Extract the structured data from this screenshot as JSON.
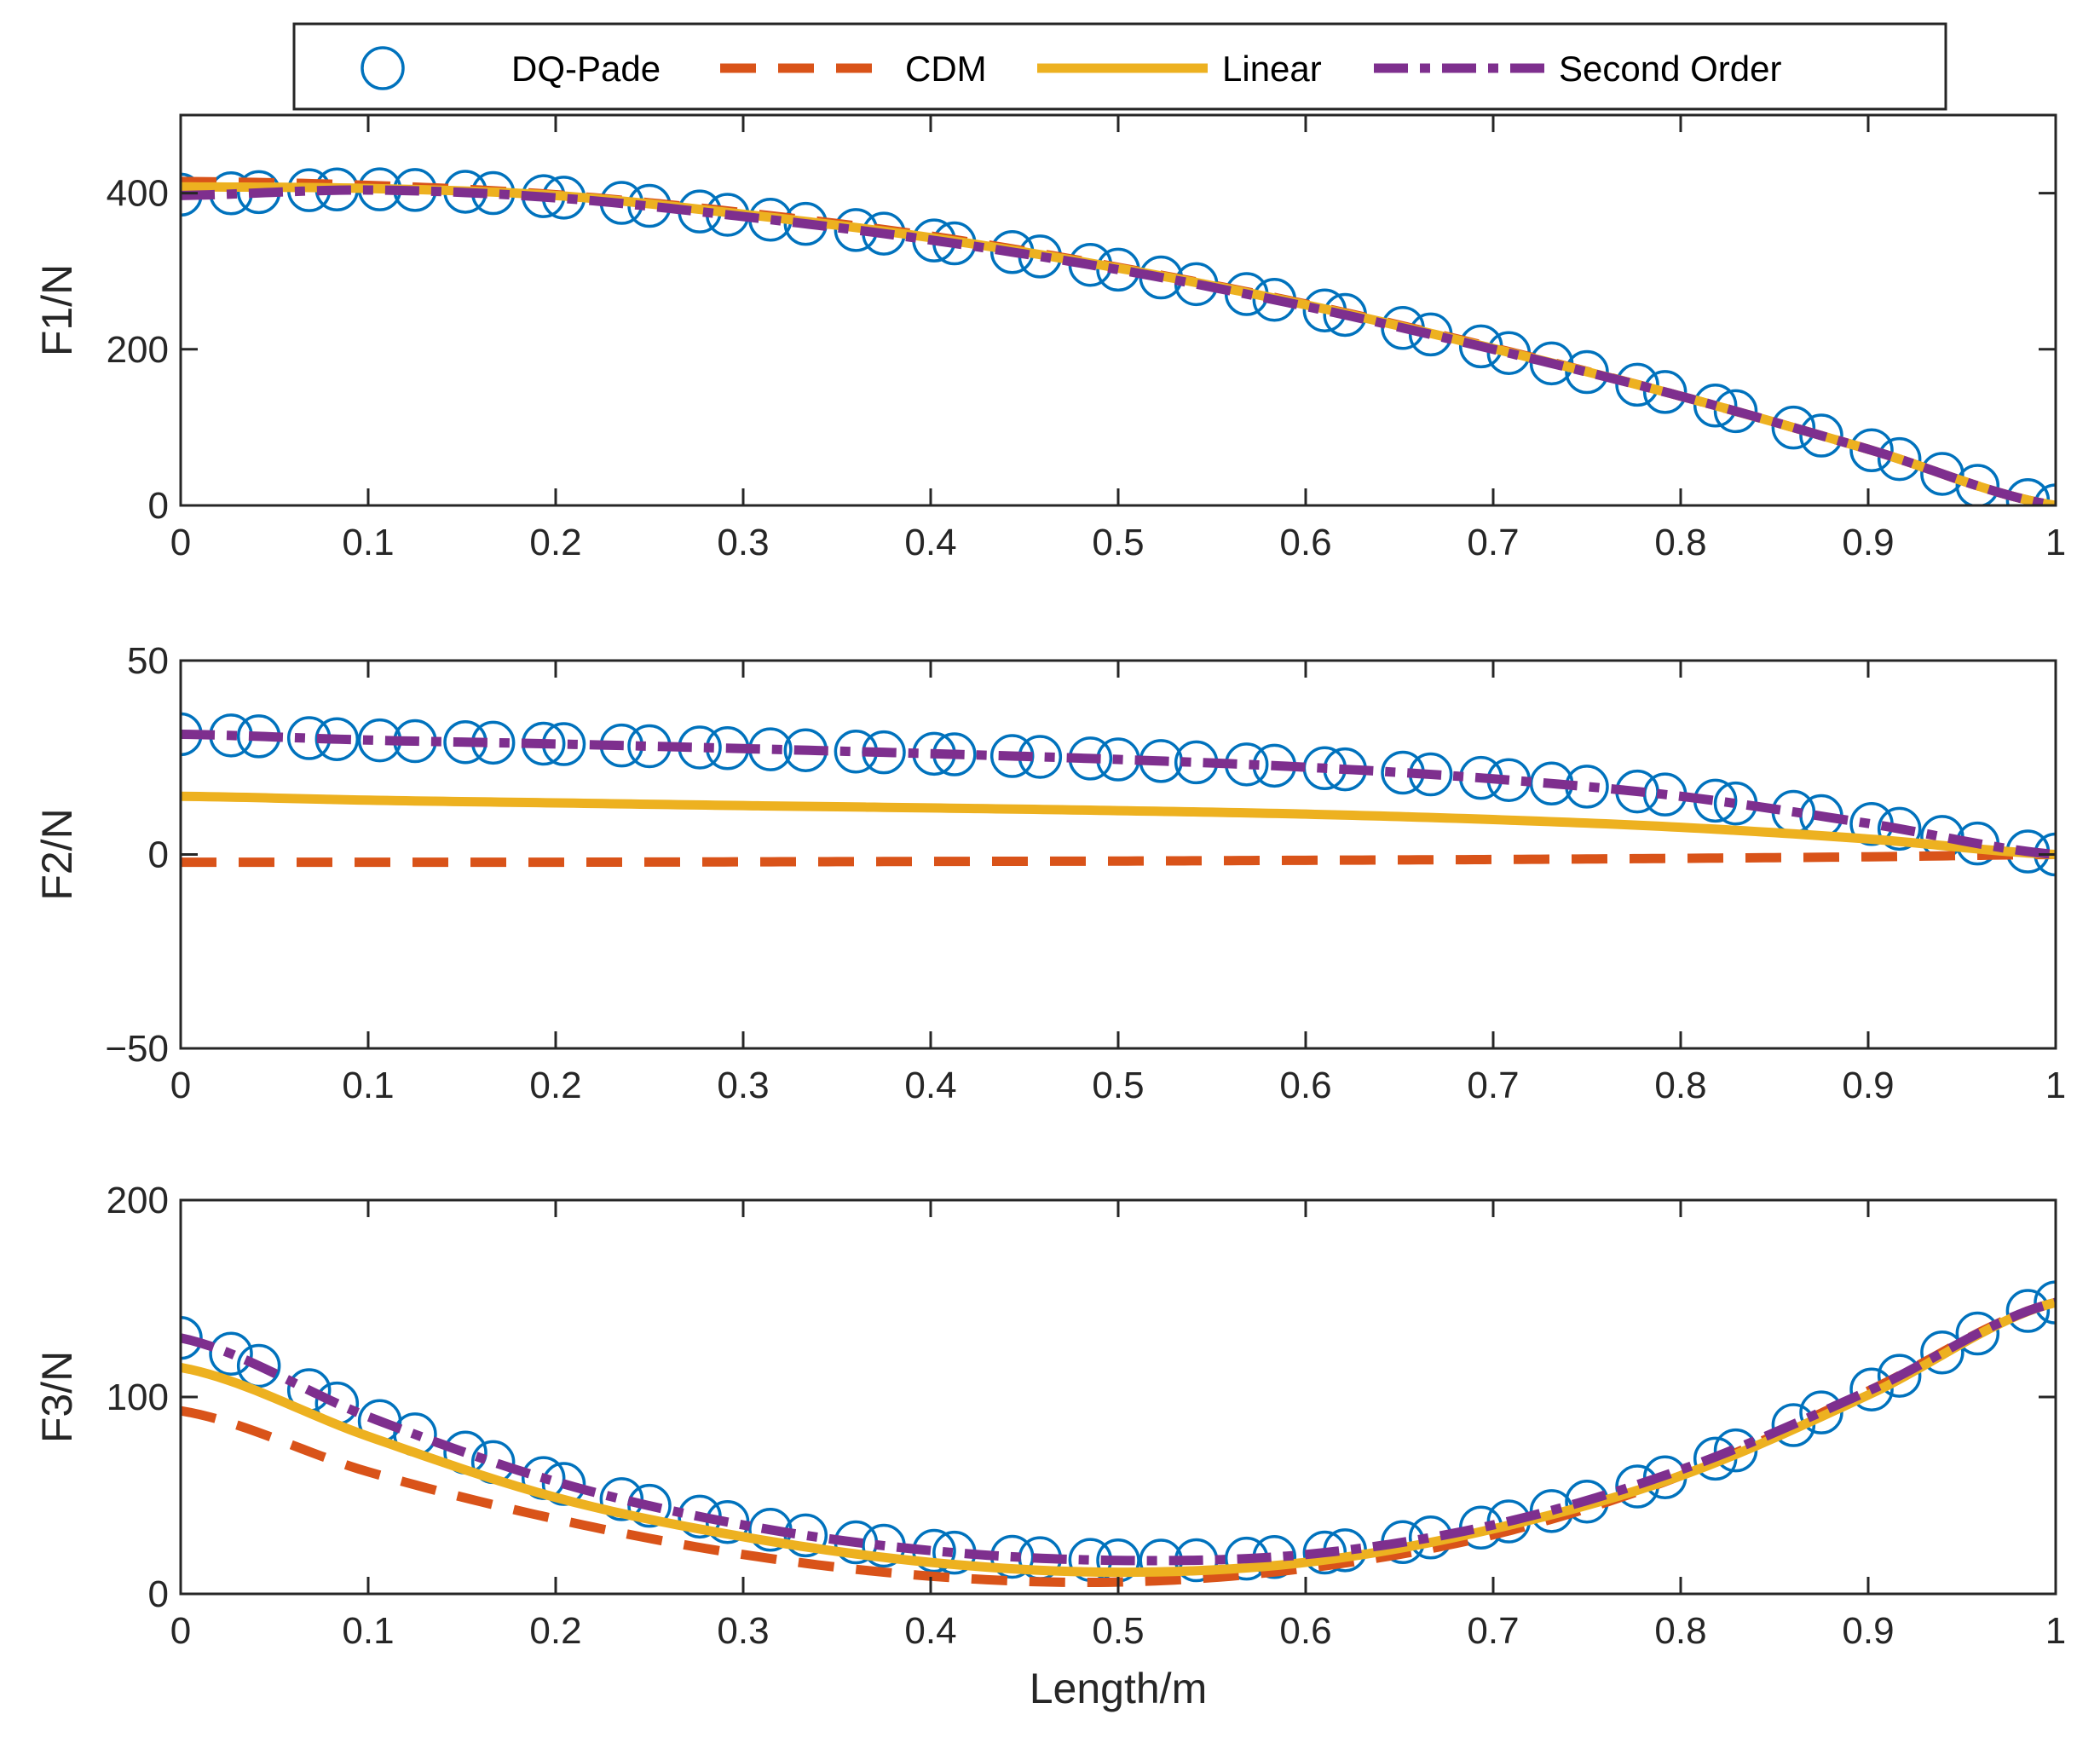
{
  "legend": {
    "position": "top",
    "entries": [
      {
        "name": "DQ-Pade",
        "style": "circle",
        "color": "#0072BD"
      },
      {
        "name": "CDM",
        "style": "dashed",
        "color": "#D95319"
      },
      {
        "name": "Linear",
        "style": "solid",
        "color": "#EDB120"
      },
      {
        "name": "Second Order",
        "style": "dashdot",
        "color": "#7E2F8E"
      }
    ]
  },
  "chart_data": [
    {
      "type": "line",
      "title": "",
      "xlabel": "",
      "ylabel": "F1/N",
      "xlim": [
        0,
        1
      ],
      "ylim": [
        0,
        500
      ],
      "xticks": [
        0,
        0.1,
        0.2,
        0.3,
        0.4,
        0.5,
        0.6,
        0.7,
        0.8,
        0.9,
        1
      ],
      "xtick_labels": [
        "0",
        "0.1",
        "0.2",
        "0.3",
        "0.4",
        "0.5",
        "0.6",
        "0.7",
        "0.8",
        "0.9",
        "1"
      ],
      "yticks": [
        0,
        200,
        400
      ],
      "ytick_labels": [
        "0",
        "200",
        "400"
      ],
      "grid": false,
      "x": [
        0,
        0.1,
        0.2,
        0.3,
        0.4,
        0.5,
        0.6,
        0.7,
        0.8,
        0.9,
        1
      ],
      "series": [
        {
          "name": "DQ-Pade",
          "values": [
            398,
            405,
            395,
            370,
            340,
            302,
            255,
            200,
            140,
            72,
            0
          ]
        },
        {
          "name": "CDM",
          "values": [
            415,
            410,
            398,
            375,
            345,
            305,
            258,
            202,
            140,
            72,
            0
          ]
        },
        {
          "name": "Linear",
          "values": [
            408,
            406,
            397,
            373,
            343,
            304,
            257,
            201,
            140,
            72,
            0
          ]
        },
        {
          "name": "Second Order",
          "values": [
            397,
            404,
            394,
            370,
            340,
            302,
            255,
            200,
            140,
            72,
            0
          ]
        }
      ]
    },
    {
      "type": "line",
      "title": "",
      "xlabel": "",
      "ylabel": "F2/N",
      "xlim": [
        0,
        1
      ],
      "ylim": [
        -50,
        50
      ],
      "xticks": [
        0,
        0.1,
        0.2,
        0.3,
        0.4,
        0.5,
        0.6,
        0.7,
        0.8,
        0.9,
        1
      ],
      "xtick_labels": [
        "0",
        "0.1",
        "0.2",
        "0.3",
        "0.4",
        "0.5",
        "0.6",
        "0.7",
        "0.8",
        "0.9",
        "1"
      ],
      "yticks": [
        -50,
        0,
        50
      ],
      "ytick_labels": [
        "−50",
        "0",
        "50"
      ],
      "grid": false,
      "x": [
        0,
        0.1,
        0.2,
        0.3,
        0.4,
        0.5,
        0.6,
        0.7,
        0.8,
        0.9,
        1
      ],
      "series": [
        {
          "name": "DQ-Pade",
          "values": [
            31,
            29.5,
            28.5,
            27.3,
            26,
            24.5,
            22.5,
            19.5,
            15,
            8,
            0
          ]
        },
        {
          "name": "CDM",
          "values": [
            -2,
            -2,
            -2,
            -1.9,
            -1.8,
            -1.7,
            -1.5,
            -1.3,
            -1,
            -0.6,
            0
          ]
        },
        {
          "name": "Linear",
          "values": [
            15,
            14,
            13.3,
            12.6,
            12,
            11.3,
            10.4,
            9,
            7,
            4,
            0
          ]
        },
        {
          "name": "Second Order",
          "values": [
            31,
            29.5,
            28.5,
            27.3,
            26,
            24.5,
            22.5,
            19.5,
            15,
            8,
            0
          ]
        }
      ]
    },
    {
      "type": "line",
      "title": "",
      "xlabel": "Length/m",
      "ylabel": "F3/N",
      "xlim": [
        0,
        1
      ],
      "ylim": [
        0,
        200
      ],
      "xticks": [
        0,
        0.1,
        0.2,
        0.3,
        0.4,
        0.5,
        0.6,
        0.7,
        0.8,
        0.9,
        1
      ],
      "xtick_labels": [
        "0",
        "0.1",
        "0.2",
        "0.3",
        "0.4",
        "0.5",
        "0.6",
        "0.7",
        "0.8",
        "0.9",
        "1"
      ],
      "yticks": [
        0,
        100,
        200
      ],
      "ytick_labels": [
        "0",
        "100",
        "200"
      ],
      "grid": false,
      "x": [
        0,
        0.1,
        0.2,
        0.3,
        0.4,
        0.5,
        0.6,
        0.7,
        0.8,
        0.9,
        1
      ],
      "series": [
        {
          "name": "DQ-Pade",
          "values": [
            130,
            90,
            57,
            35,
            22,
            17,
            20,
            35,
            62,
            103,
            148
          ]
        },
        {
          "name": "CDM",
          "values": [
            93,
            62,
            38,
            20,
            9,
            6,
            13,
            30,
            60,
            103,
            148
          ]
        },
        {
          "name": "Linear",
          "values": [
            115,
            80,
            49,
            29,
            16,
            11,
            16,
            33,
            60,
            101,
            148
          ]
        },
        {
          "name": "Second Order",
          "values": [
            130,
            90,
            57,
            35,
            22,
            17,
            20,
            35,
            63,
            103,
            148
          ]
        }
      ]
    }
  ]
}
